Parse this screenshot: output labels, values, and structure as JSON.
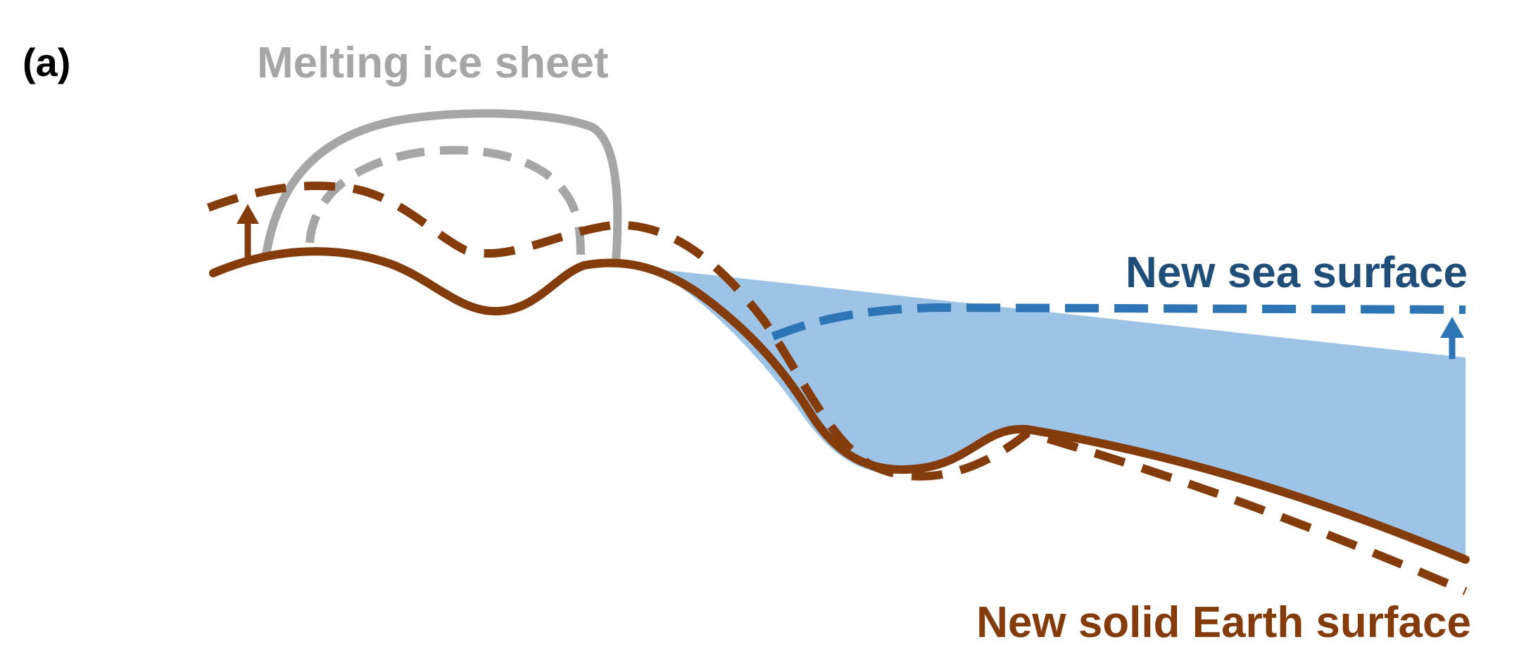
{
  "panel_label": "(a)",
  "labels": {
    "ice_sheet": "Melting ice sheet",
    "sea_surface": "New sea surface",
    "earth_surface": "New solid Earth surface"
  },
  "colors": {
    "ice": "#a6a6a6",
    "earth": "#843c0c",
    "sea_line": "#2e75b6",
    "sea_fill": "#9dc3e6",
    "panel_label": "#000000",
    "sea_label": "#1f4e79"
  }
}
